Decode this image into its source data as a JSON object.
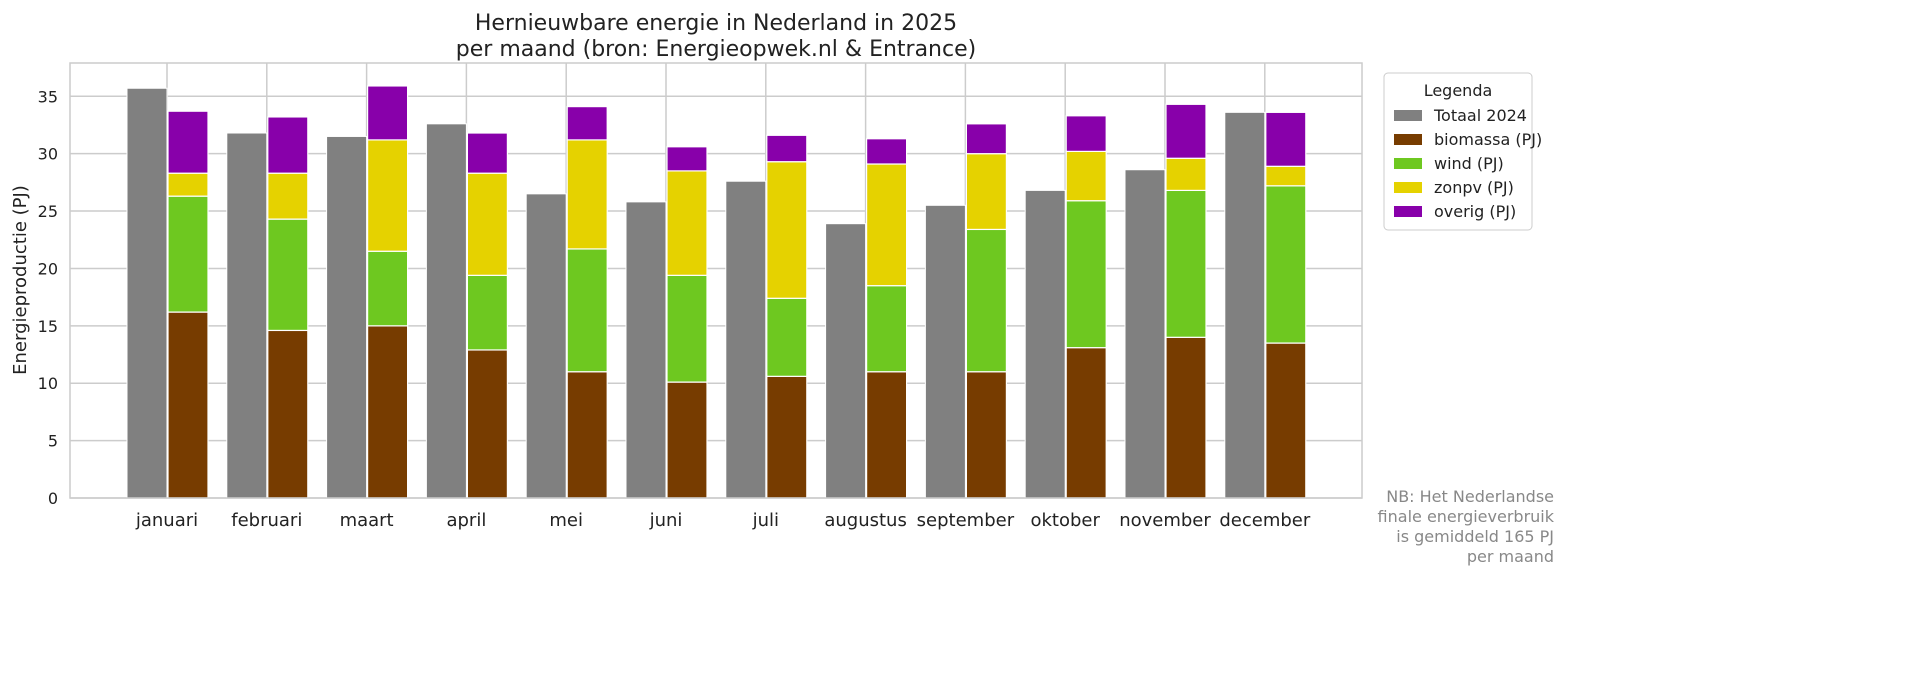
{
  "chart_data": {
    "type": "bar",
    "title": "Hernieuwbare energie in Nederland in 2025",
    "subtitle": "per maand (bron: Energieopwek.nl & Entrance)",
    "xlabel": "",
    "ylabel": "Energieproductie (PJ)",
    "ylim": [
      0,
      37.9
    ],
    "yticks": [
      0,
      5,
      10,
      15,
      20,
      25,
      30,
      35
    ],
    "grid": true,
    "categories": [
      "januari",
      "februari",
      "maart",
      "april",
      "mei",
      "juni",
      "juli",
      "augustus",
      "september",
      "oktober",
      "november",
      "december"
    ],
    "total_2024": {
      "name": "Totaal 2024",
      "color": "#808080",
      "values": [
        35.7,
        31.8,
        31.5,
        32.6,
        26.5,
        25.8,
        27.6,
        23.9,
        25.5,
        26.8,
        28.6,
        33.6
      ]
    },
    "stacked_series": [
      {
        "name": "biomassa (PJ)",
        "color": "#773c00",
        "values": [
          16.2,
          14.6,
          15.0,
          12.9,
          11.0,
          10.1,
          10.6,
          11.0,
          11.0,
          13.1,
          14.0,
          13.5
        ]
      },
      {
        "name": "wind (PJ)",
        "color": "#6ec820",
        "values": [
          10.1,
          9.7,
          6.5,
          6.5,
          10.7,
          9.3,
          6.8,
          7.5,
          12.4,
          12.8,
          12.8,
          13.7
        ]
      },
      {
        "name": "zonpv (PJ)",
        "color": "#e5d200",
        "values": [
          2.0,
          4.0,
          9.7,
          8.9,
          9.5,
          9.1,
          11.9,
          10.6,
          6.6,
          4.3,
          2.8,
          1.7
        ]
      },
      {
        "name": "overig (PJ)",
        "color": "#8800aa",
        "values": [
          5.4,
          4.9,
          4.7,
          3.5,
          2.9,
          2.1,
          2.3,
          2.2,
          2.6,
          3.1,
          4.7,
          4.7
        ]
      }
    ],
    "legend": {
      "title": "Legenda",
      "placement": "outside-top-right"
    },
    "annotation": [
      "NB: Het Nederlandse",
      "finale energieverbruik",
      "is gemiddeld 165 PJ",
      "per maand"
    ]
  }
}
